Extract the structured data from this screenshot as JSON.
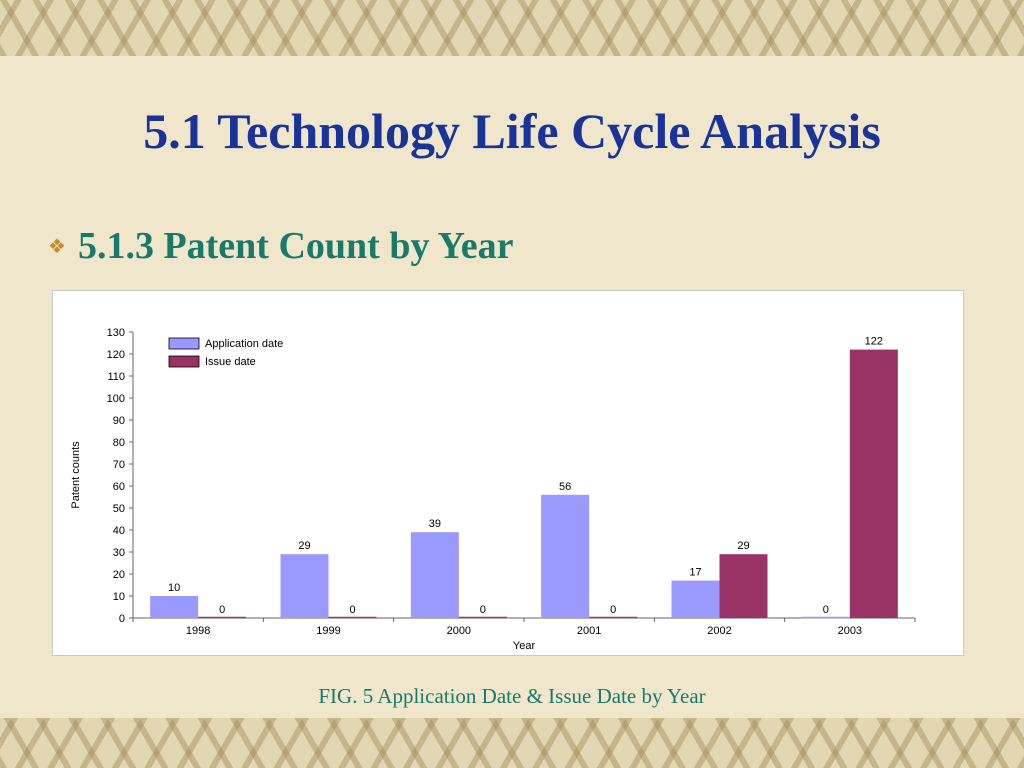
{
  "slide": {
    "title": "5.1 Technology Life Cycle Analysis",
    "bullet_icon": "diamond-bullet-icon",
    "subtitle": "5.1.3 Patent Count by Year",
    "caption": "FIG. 5 Application Date & Issue Date by Year"
  },
  "chart_data": {
    "type": "bar",
    "title": "",
    "xlabel": "Year",
    "ylabel": "Patent counts",
    "categories": [
      "1998",
      "1999",
      "2000",
      "2001",
      "2002",
      "2003"
    ],
    "series": [
      {
        "name": "Application date",
        "values": [
          10,
          29,
          39,
          56,
          17,
          0
        ],
        "color": "#9999ff"
      },
      {
        "name": "Issue date",
        "values": [
          0,
          0,
          0,
          0,
          29,
          122
        ],
        "color": "#993366"
      }
    ],
    "ylim": [
      0,
      130
    ],
    "yticks": [
      0,
      10,
      20,
      30,
      40,
      50,
      60,
      70,
      80,
      90,
      100,
      110,
      120,
      130
    ],
    "legend": "top-left",
    "data_labels": true,
    "grid": false
  }
}
